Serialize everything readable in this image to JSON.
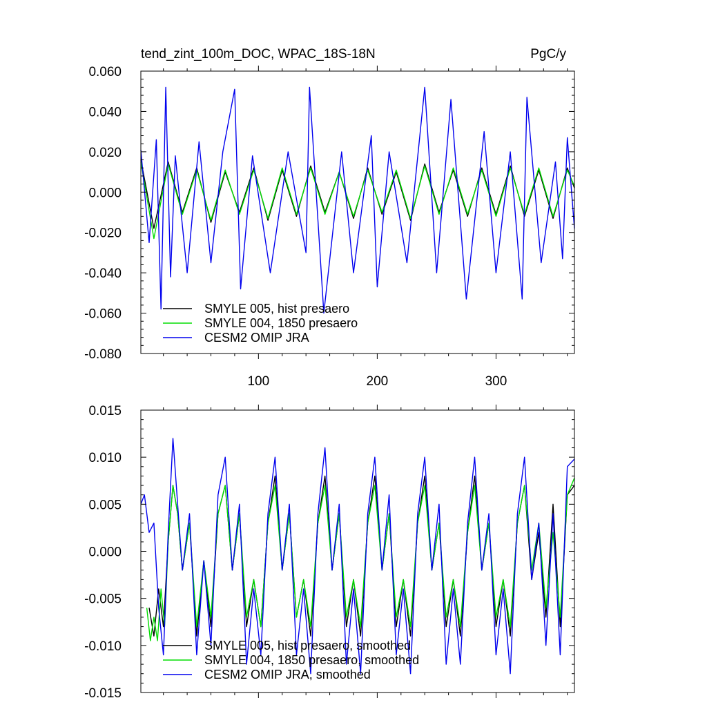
{
  "chart_data": [
    {
      "type": "line",
      "title_left": "tend_zint_100m_DOC, WPAC_18S-18N",
      "title_right": "PgC/y",
      "xlabel": "",
      "ylabel": "",
      "xlim": [
        1,
        366
      ],
      "ylim": [
        -0.08,
        0.06
      ],
      "xticks": [
        100,
        200,
        300
      ],
      "yticks": [
        -0.08,
        -0.06,
        -0.04,
        -0.02,
        0.0,
        0.02,
        0.04,
        0.06
      ],
      "ytick_labels": [
        "-0.080",
        "-0.060",
        "-0.040",
        "-0.020",
        "0.000",
        "0.020",
        "0.040",
        "0.060"
      ],
      "legend_position": "lower-left",
      "grid": false,
      "series": [
        {
          "name": "SMYLE 005, hist presaero",
          "color": "#000000",
          "x": [
            1,
            12,
            24,
            36,
            48,
            60,
            72,
            84,
            96,
            108,
            120,
            132,
            144,
            156,
            168,
            180,
            192,
            204,
            216,
            228,
            240,
            252,
            264,
            276,
            288,
            300,
            312,
            324,
            336,
            348,
            360,
            366
          ],
          "values": [
            0.016,
            -0.018,
            0.015,
            -0.01,
            0.012,
            -0.015,
            0.01,
            -0.01,
            0.012,
            -0.014,
            0.011,
            -0.012,
            0.013,
            -0.01,
            0.01,
            -0.013,
            0.012,
            -0.011,
            0.01,
            -0.014,
            0.014,
            -0.01,
            0.011,
            -0.012,
            0.012,
            -0.011,
            0.013,
            -0.012,
            0.011,
            -0.013,
            0.012,
            0.002
          ]
        },
        {
          "name": "SMYLE 004, 1850 presaero",
          "color": "#00dd00",
          "x": [
            1,
            12,
            24,
            36,
            48,
            60,
            72,
            84,
            96,
            108,
            120,
            132,
            144,
            156,
            168,
            180,
            192,
            204,
            216,
            228,
            240,
            252,
            264,
            276,
            288,
            300,
            312,
            324,
            336,
            348,
            360,
            366
          ],
          "values": [
            0.015,
            -0.023,
            0.014,
            -0.011,
            0.011,
            -0.014,
            0.011,
            -0.011,
            0.011,
            -0.013,
            0.012,
            -0.011,
            0.012,
            -0.011,
            0.01,
            -0.012,
            0.011,
            -0.01,
            0.011,
            -0.013,
            0.013,
            -0.011,
            0.012,
            -0.011,
            0.011,
            -0.012,
            0.012,
            -0.011,
            0.012,
            -0.012,
            0.011,
            0.003
          ]
        },
        {
          "name": "CESM2 OMIP JRA",
          "color": "#0000ee",
          "x": [
            1,
            8,
            14,
            18,
            22,
            26,
            30,
            40,
            50,
            60,
            70,
            80,
            85,
            95,
            110,
            125,
            140,
            143,
            155,
            170,
            180,
            195,
            200,
            210,
            225,
            240,
            250,
            262,
            275,
            290,
            300,
            312,
            322,
            326,
            338,
            350,
            356,
            360,
            366
          ],
          "values": [
            0.021,
            -0.025,
            0.026,
            -0.058,
            0.052,
            -0.042,
            0.018,
            -0.04,
            0.025,
            -0.035,
            0.02,
            0.051,
            -0.048,
            0.018,
            -0.04,
            0.02,
            -0.03,
            0.052,
            -0.06,
            0.02,
            -0.04,
            0.028,
            -0.047,
            0.02,
            -0.035,
            0.052,
            -0.04,
            0.046,
            -0.053,
            0.03,
            -0.04,
            0.02,
            -0.053,
            0.047,
            -0.035,
            0.015,
            -0.033,
            0.027,
            -0.018
          ]
        }
      ]
    },
    {
      "type": "line",
      "title_left": "",
      "title_right": "",
      "xlabel": "",
      "ylabel": "",
      "xlim": [
        1,
        366
      ],
      "ylim": [
        -0.015,
        0.015
      ],
      "xticks": [
        100,
        200,
        300
      ],
      "yticks": [
        -0.015,
        -0.01,
        -0.005,
        0.0,
        0.005,
        0.01,
        0.015
      ],
      "ytick_labels": [
        "-0.015",
        "-0.010",
        "-0.005",
        "0.000",
        "0.005",
        "0.010",
        "0.015"
      ],
      "legend_position": "lower-left",
      "grid": false,
      "series": [
        {
          "name": "SMYLE 005, hist presaero, smoothed",
          "color": "#000000",
          "x": [
            8,
            12,
            16,
            20,
            24,
            28,
            32,
            36,
            42,
            48,
            54,
            60,
            66,
            72,
            78,
            84,
            90,
            96,
            102,
            108,
            114,
            120,
            126,
            132,
            138,
            144,
            150,
            156,
            162,
            168,
            174,
            180,
            186,
            192,
            198,
            204,
            210,
            216,
            222,
            228,
            234,
            240,
            246,
            252,
            258,
            264,
            270,
            276,
            282,
            288,
            294,
            300,
            306,
            312,
            318,
            324,
            330,
            336,
            342,
            348,
            354,
            360,
            366
          ],
          "values": [
            -0.006,
            -0.009,
            -0.004,
            -0.008,
            0.001,
            0.007,
            0.004,
            -0.002,
            0.003,
            -0.009,
            -0.001,
            -0.008,
            0.004,
            0.007,
            -0.002,
            0.004,
            -0.008,
            -0.003,
            -0.008,
            0.003,
            0.008,
            -0.002,
            0.004,
            -0.007,
            -0.003,
            -0.009,
            0.003,
            0.008,
            -0.002,
            0.004,
            -0.008,
            -0.003,
            -0.009,
            0.003,
            0.008,
            -0.002,
            0.004,
            -0.008,
            -0.003,
            -0.009,
            0.003,
            0.008,
            -0.002,
            0.003,
            -0.008,
            -0.003,
            -0.009,
            0.002,
            0.008,
            -0.002,
            0.003,
            -0.008,
            -0.003,
            -0.009,
            0.003,
            0.007,
            -0.003,
            0.002,
            -0.007,
            0.005,
            -0.008,
            0.006,
            0.007
          ]
        },
        {
          "name": "SMYLE 004, 1850 presaero, smoothed",
          "color": "#00dd00",
          "x": [
            6,
            9,
            12,
            15,
            18,
            21,
            24,
            28,
            32,
            36,
            42,
            48,
            54,
            60,
            66,
            72,
            78,
            84,
            90,
            96,
            102,
            108,
            114,
            120,
            126,
            132,
            138,
            144,
            150,
            156,
            162,
            168,
            174,
            180,
            186,
            192,
            198,
            204,
            210,
            216,
            222,
            228,
            234,
            240,
            246,
            252,
            258,
            264,
            270,
            276,
            282,
            288,
            294,
            300,
            306,
            312,
            318,
            324,
            330,
            336,
            342,
            348,
            354,
            360,
            366
          ],
          "values": [
            -0.006,
            -0.0095,
            -0.007,
            -0.0095,
            -0.004,
            -0.008,
            0.001,
            0.007,
            0.004,
            -0.002,
            0.003,
            -0.008,
            -0.001,
            -0.007,
            0.004,
            0.007,
            -0.002,
            0.004,
            -0.007,
            -0.003,
            -0.008,
            0.003,
            0.007,
            -0.002,
            0.004,
            -0.007,
            -0.003,
            -0.008,
            0.003,
            0.007,
            -0.002,
            0.004,
            -0.007,
            -0.003,
            -0.008,
            0.003,
            0.007,
            -0.002,
            0.004,
            -0.007,
            -0.003,
            -0.008,
            0.003,
            0.007,
            -0.002,
            0.003,
            -0.007,
            -0.003,
            -0.008,
            0.002,
            0.007,
            -0.002,
            0.003,
            -0.007,
            -0.003,
            -0.008,
            0.003,
            0.007,
            -0.002,
            0.003,
            -0.006,
            0.002,
            -0.007,
            0.006,
            0.0078
          ]
        },
        {
          "name": "CESM2 OMIP JRA, smoothed",
          "color": "#0000ee",
          "x": [
            1,
            4,
            8,
            12,
            16,
            20,
            24,
            28,
            32,
            36,
            42,
            48,
            54,
            60,
            66,
            72,
            78,
            84,
            90,
            96,
            102,
            108,
            114,
            120,
            126,
            132,
            138,
            144,
            150,
            156,
            162,
            168,
            174,
            180,
            186,
            192,
            198,
            204,
            210,
            216,
            222,
            228,
            234,
            240,
            246,
            252,
            258,
            264,
            270,
            276,
            282,
            288,
            294,
            300,
            306,
            312,
            318,
            324,
            330,
            336,
            342,
            348,
            354,
            360,
            366
          ],
          "values": [
            0.005,
            0.006,
            0.002,
            0.003,
            -0.006,
            -0.011,
            0.002,
            0.012,
            0.005,
            -0.002,
            0.004,
            -0.011,
            -0.001,
            -0.01,
            0.006,
            0.01,
            -0.002,
            0.005,
            -0.012,
            -0.004,
            -0.011,
            0.004,
            0.01,
            -0.002,
            0.005,
            -0.011,
            -0.004,
            -0.013,
            0.004,
            0.011,
            -0.002,
            0.005,
            -0.012,
            -0.004,
            -0.013,
            0.004,
            0.01,
            -0.002,
            0.006,
            -0.011,
            -0.004,
            -0.013,
            0.004,
            0.01,
            -0.002,
            0.005,
            -0.012,
            -0.004,
            -0.012,
            0.003,
            0.01,
            -0.002,
            0.004,
            -0.011,
            -0.004,
            -0.013,
            0.004,
            0.01,
            -0.003,
            0.003,
            -0.01,
            0.004,
            -0.011,
            0.009,
            0.0098
          ]
        }
      ]
    }
  ]
}
